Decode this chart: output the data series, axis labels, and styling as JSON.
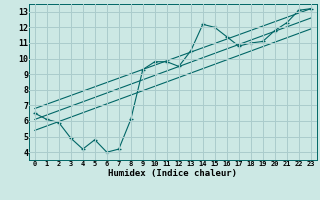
{
  "xlabel": "Humidex (Indice chaleur)",
  "bg_color": "#cce8e4",
  "grid_color": "#aacccc",
  "line_color": "#006666",
  "x_ticks": [
    0,
    1,
    2,
    3,
    4,
    5,
    6,
    7,
    8,
    9,
    10,
    11,
    12,
    13,
    14,
    15,
    16,
    17,
    18,
    19,
    20,
    21,
    22,
    23
  ],
  "y_ticks": [
    4,
    5,
    6,
    7,
    8,
    9,
    10,
    11,
    12,
    13
  ],
  "xlim": [
    -0.5,
    23.5
  ],
  "ylim": [
    3.5,
    13.5
  ],
  "zigzag_x": [
    0,
    1,
    2,
    3,
    4,
    5,
    6,
    7,
    8,
    9,
    10,
    11,
    12,
    13,
    14,
    15,
    16,
    17,
    18,
    19,
    20,
    21,
    22,
    23
  ],
  "zigzag_y": [
    6.5,
    6.1,
    5.9,
    4.9,
    4.2,
    4.8,
    4.0,
    4.2,
    6.1,
    9.3,
    9.8,
    9.8,
    9.5,
    10.5,
    12.2,
    12.0,
    11.4,
    10.8,
    11.0,
    11.1,
    11.8,
    12.3,
    13.1,
    13.2
  ],
  "line1_x": [
    0,
    23
  ],
  "line1_y": [
    6.8,
    13.2
  ],
  "line2_x": [
    0,
    23
  ],
  "line2_y": [
    6.1,
    12.6
  ],
  "line3_x": [
    0,
    23
  ],
  "line3_y": [
    5.4,
    11.9
  ]
}
